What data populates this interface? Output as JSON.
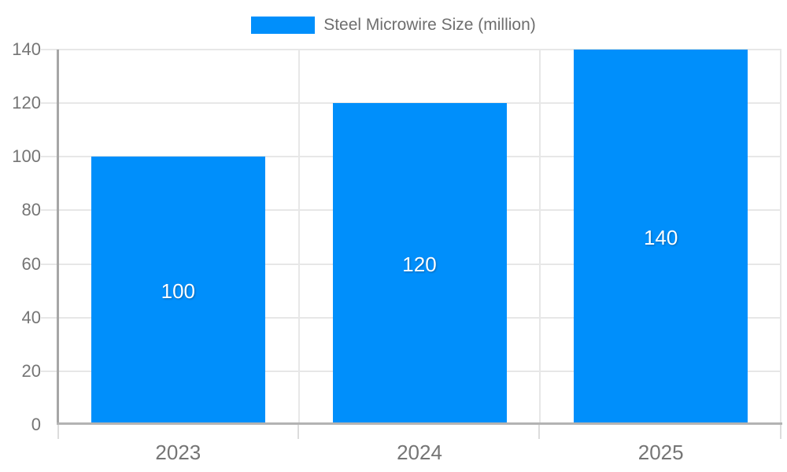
{
  "chart_data": {
    "type": "bar",
    "title": "",
    "xlabel": "",
    "ylabel": "",
    "legend": {
      "label": "Steel Microwire Size (million)",
      "position": "top"
    },
    "categories": [
      "2023",
      "2024",
      "2025"
    ],
    "series": [
      {
        "name": "Steel Microwire Size (million)",
        "values": [
          100,
          120,
          140
        ]
      }
    ],
    "data_labels": [
      "100",
      "120",
      "140"
    ],
    "ylim": [
      0,
      140
    ],
    "yticks": [
      0,
      20,
      40,
      60,
      80,
      100,
      120,
      140
    ],
    "grid": true,
    "colors": {
      "bar": "#008FFB",
      "grid": "#e7e7e7",
      "y_axis_line": "#a6a6a6",
      "x_axis_line": "#b3b3b3",
      "tick_below_axis": "#dcdcdc",
      "axis_text": "#757575",
      "legend_text": "#6e6e6e",
      "data_label_text": "#ffffff"
    }
  }
}
